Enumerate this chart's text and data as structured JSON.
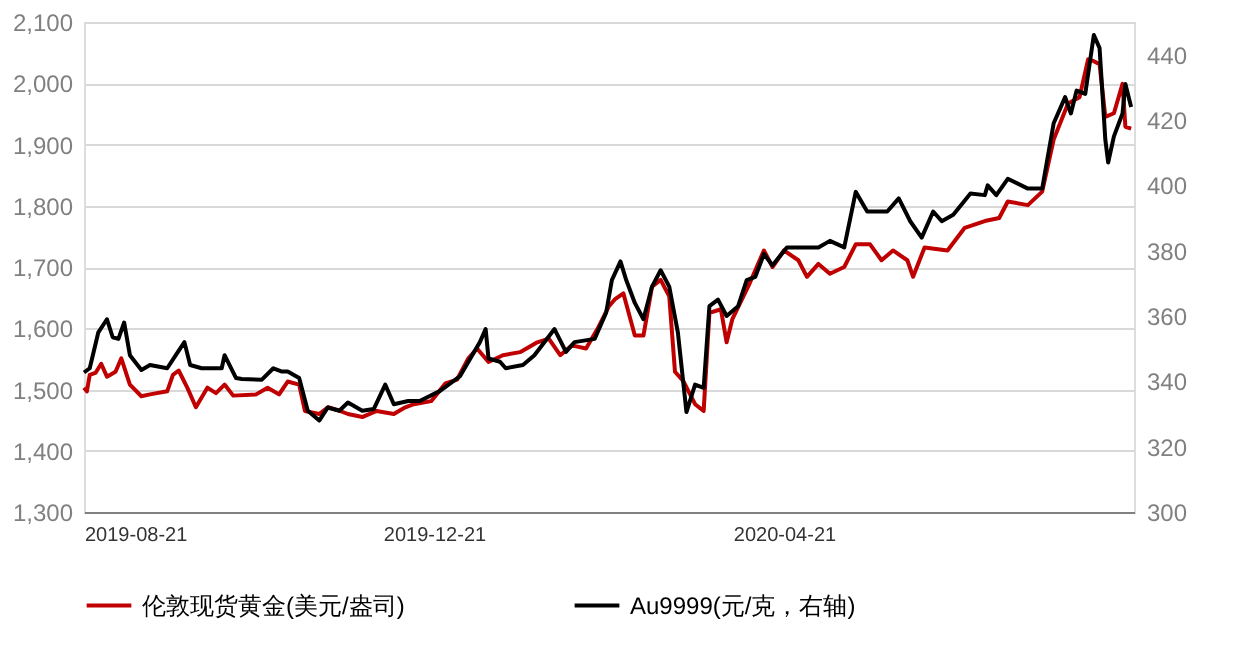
{
  "chart_data": {
    "type": "line",
    "xlim": [
      "2019-08-21",
      "2020-08-21"
    ],
    "xticks": [
      "2019-08-21",
      "2019-12-21",
      "2020-04-21"
    ],
    "ylim": [
      1300,
      2100
    ],
    "yticks": [
      {
        "value": 1300,
        "label": "1,300"
      },
      {
        "value": 1400,
        "label": "1,400"
      },
      {
        "value": 1500,
        "label": "1,500"
      },
      {
        "value": 1600,
        "label": "1,600"
      },
      {
        "value": 1700,
        "label": "1,700"
      },
      {
        "value": 1800,
        "label": "1,800"
      },
      {
        "value": 1900,
        "label": "1,900"
      },
      {
        "value": 2000,
        "label": "2,000"
      },
      {
        "value": 2100,
        "label": "2,100"
      }
    ],
    "y2lim": [
      300,
      450
    ],
    "y2ticks": [
      300,
      320,
      340,
      360,
      380,
      400,
      420,
      440
    ],
    "grid": "y",
    "legend": "bottom",
    "marker": "none",
    "line_style": "solid",
    "series": [
      {
        "name": "伦敦现货黄金(美元/盎司)",
        "color": "#c00000",
        "x": [
          "2019-08-21",
          "2019-08-22",
          "2019-08-23",
          "2019-08-25",
          "2019-08-27",
          "2019-08-29",
          "2019-09-01",
          "2019-09-03",
          "2019-09-06",
          "2019-09-10",
          "2019-09-13",
          "2019-09-19",
          "2019-09-21",
          "2019-09-23",
          "2019-09-26",
          "2019-09-29",
          "2019-10-03",
          "2019-10-06",
          "2019-10-09",
          "2019-10-12",
          "2019-10-20",
          "2019-10-24",
          "2019-10-28",
          "2019-10-31",
          "2019-11-04",
          "2019-11-06",
          "2019-11-11",
          "2019-11-14",
          "2019-11-17",
          "2019-11-21",
          "2019-11-26",
          "2019-12-01",
          "2019-12-07",
          "2019-12-11",
          "2019-12-14",
          "2019-12-20",
          "2019-12-25",
          "2019-12-29",
          "2020-01-02",
          "2020-01-05",
          "2020-01-09",
          "2020-01-14",
          "2020-01-20",
          "2020-01-26",
          "2020-01-30",
          "2020-02-03",
          "2020-02-07",
          "2020-02-12",
          "2020-02-16",
          "2020-02-20",
          "2020-02-22",
          "2020-02-25",
          "2020-02-29",
          "2020-03-03",
          "2020-03-06",
          "2020-03-09",
          "2020-03-12",
          "2020-03-14",
          "2020-03-17",
          "2020-03-21",
          "2020-03-24",
          "2020-03-26",
          "2020-03-30",
          "2020-04-01",
          "2020-04-03",
          "2020-04-09",
          "2020-04-14",
          "2020-04-17",
          "2020-04-21",
          "2020-04-26",
          "2020-04-29",
          "2020-05-03",
          "2020-05-07",
          "2020-05-12",
          "2020-05-16",
          "2020-05-21",
          "2020-05-25",
          "2020-05-29",
          "2020-06-03",
          "2020-06-05",
          "2020-06-09",
          "2020-06-17",
          "2020-06-23",
          "2020-06-30",
          "2020-07-05",
          "2020-07-08",
          "2020-07-15",
          "2020-07-20",
          "2020-07-24",
          "2020-07-29",
          "2020-08-02",
          "2020-08-05",
          "2020-08-07",
          "2020-08-09",
          "2020-08-11",
          "2020-08-14",
          "2020-08-17",
          "2020-08-18",
          "2020-08-20"
        ],
        "values": [
          1503,
          1497,
          1524,
          1527,
          1542,
          1521,
          1529,
          1551,
          1508,
          1489,
          1492,
          1497,
          1524,
          1531,
          1503,
          1471,
          1503,
          1494,
          1508,
          1490,
          1492,
          1503,
          1492,
          1513,
          1508,
          1465,
          1460,
          1471,
          1467,
          1460,
          1455,
          1465,
          1460,
          1471,
          1476,
          1481,
          1510,
          1516,
          1551,
          1567,
          1545,
          1556,
          1561,
          1577,
          1583,
          1556,
          1572,
          1567,
          1599,
          1636,
          1647,
          1657,
          1588,
          1588,
          1668,
          1679,
          1652,
          1529,
          1513,
          1476,
          1465,
          1625,
          1631,
          1577,
          1615,
          1673,
          1727,
          1700,
          1727,
          1711,
          1684,
          1705,
          1689,
          1700,
          1737,
          1737,
          1711,
          1727,
          1711,
          1684,
          1732,
          1727,
          1764,
          1775,
          1780,
          1807,
          1801,
          1823,
          1908,
          1967,
          1977,
          2039,
          2036,
          2031,
          1945,
          1951,
          1999,
          1929,
          1926
        ]
      },
      {
        "name": "Au9999(元/克，右轴)",
        "color": "#000000",
        "axis": "y2",
        "x": [
          "2019-08-21",
          "2019-08-23",
          "2019-08-26",
          "2019-08-29",
          "2019-08-31",
          "2019-09-02",
          "2019-09-04",
          "2019-09-06",
          "2019-09-10",
          "2019-09-13",
          "2019-09-19",
          "2019-09-22",
          "2019-09-25",
          "2019-09-27",
          "2019-10-01",
          "2019-10-08",
          "2019-10-09",
          "2019-10-13",
          "2019-10-15",
          "2019-10-22",
          "2019-10-26",
          "2019-10-29",
          "2019-10-31",
          "2019-11-04",
          "2019-11-07",
          "2019-11-11",
          "2019-11-14",
          "2019-11-18",
          "2019-11-21",
          "2019-11-26",
          "2019-11-30",
          "2019-12-04",
          "2019-12-07",
          "2019-12-12",
          "2019-12-16",
          "2019-12-23",
          "2019-12-30",
          "2020-01-06",
          "2020-01-08",
          "2020-01-09",
          "2020-01-13",
          "2020-01-15",
          "2020-01-21",
          "2020-01-25",
          "2020-02-01",
          "2020-02-05",
          "2020-02-08",
          "2020-02-15",
          "2020-02-19",
          "2020-02-21",
          "2020-02-24",
          "2020-02-26",
          "2020-02-29",
          "2020-03-03",
          "2020-03-06",
          "2020-03-09",
          "2020-03-12",
          "2020-03-15",
          "2020-03-18",
          "2020-03-21",
          "2020-03-24",
          "2020-03-26",
          "2020-03-29",
          "2020-04-01",
          "2020-04-05",
          "2020-04-08",
          "2020-04-11",
          "2020-04-14",
          "2020-04-17",
          "2020-04-22",
          "2020-04-27",
          "2020-05-03",
          "2020-05-07",
          "2020-05-12",
          "2020-05-16",
          "2020-05-20",
          "2020-05-27",
          "2020-05-31",
          "2020-06-04",
          "2020-06-08",
          "2020-06-12",
          "2020-06-15",
          "2020-06-19",
          "2020-06-25",
          "2020-06-30",
          "2020-07-01",
          "2020-07-04",
          "2020-07-08",
          "2020-07-15",
          "2020-07-20",
          "2020-07-24",
          "2020-07-28",
          "2020-07-30",
          "2020-08-01",
          "2020-08-04",
          "2020-08-07",
          "2020-08-09",
          "2020-08-11",
          "2020-08-12",
          "2020-08-14",
          "2020-08-17",
          "2020-08-18",
          "2020-08-20"
        ],
        "values": [
          342.7,
          344,
          355,
          359,
          353.5,
          353,
          358,
          348,
          343.5,
          345,
          344,
          348,
          352,
          345,
          344,
          344,
          348,
          341,
          340.7,
          340.5,
          344,
          343,
          343,
          341,
          331,
          328,
          332,
          331,
          333.5,
          331,
          331.5,
          339,
          333,
          334,
          334,
          337,
          341.5,
          352,
          356,
          347,
          346,
          344,
          345,
          348,
          356,
          349,
          352,
          353,
          361,
          371,
          376.7,
          371,
          364,
          359,
          369,
          374,
          369,
          355,
          330.6,
          339,
          338,
          363,
          365,
          360,
          363,
          371,
          372,
          379,
          375.5,
          381,
          381,
          381,
          383,
          381,
          398,
          392,
          392,
          396,
          389,
          384,
          392,
          389,
          391,
          397.5,
          397,
          400,
          397,
          402,
          399,
          399,
          419,
          427,
          422,
          429,
          428,
          446,
          442,
          414,
          407,
          415,
          422,
          431,
          424
        ]
      }
    ]
  }
}
